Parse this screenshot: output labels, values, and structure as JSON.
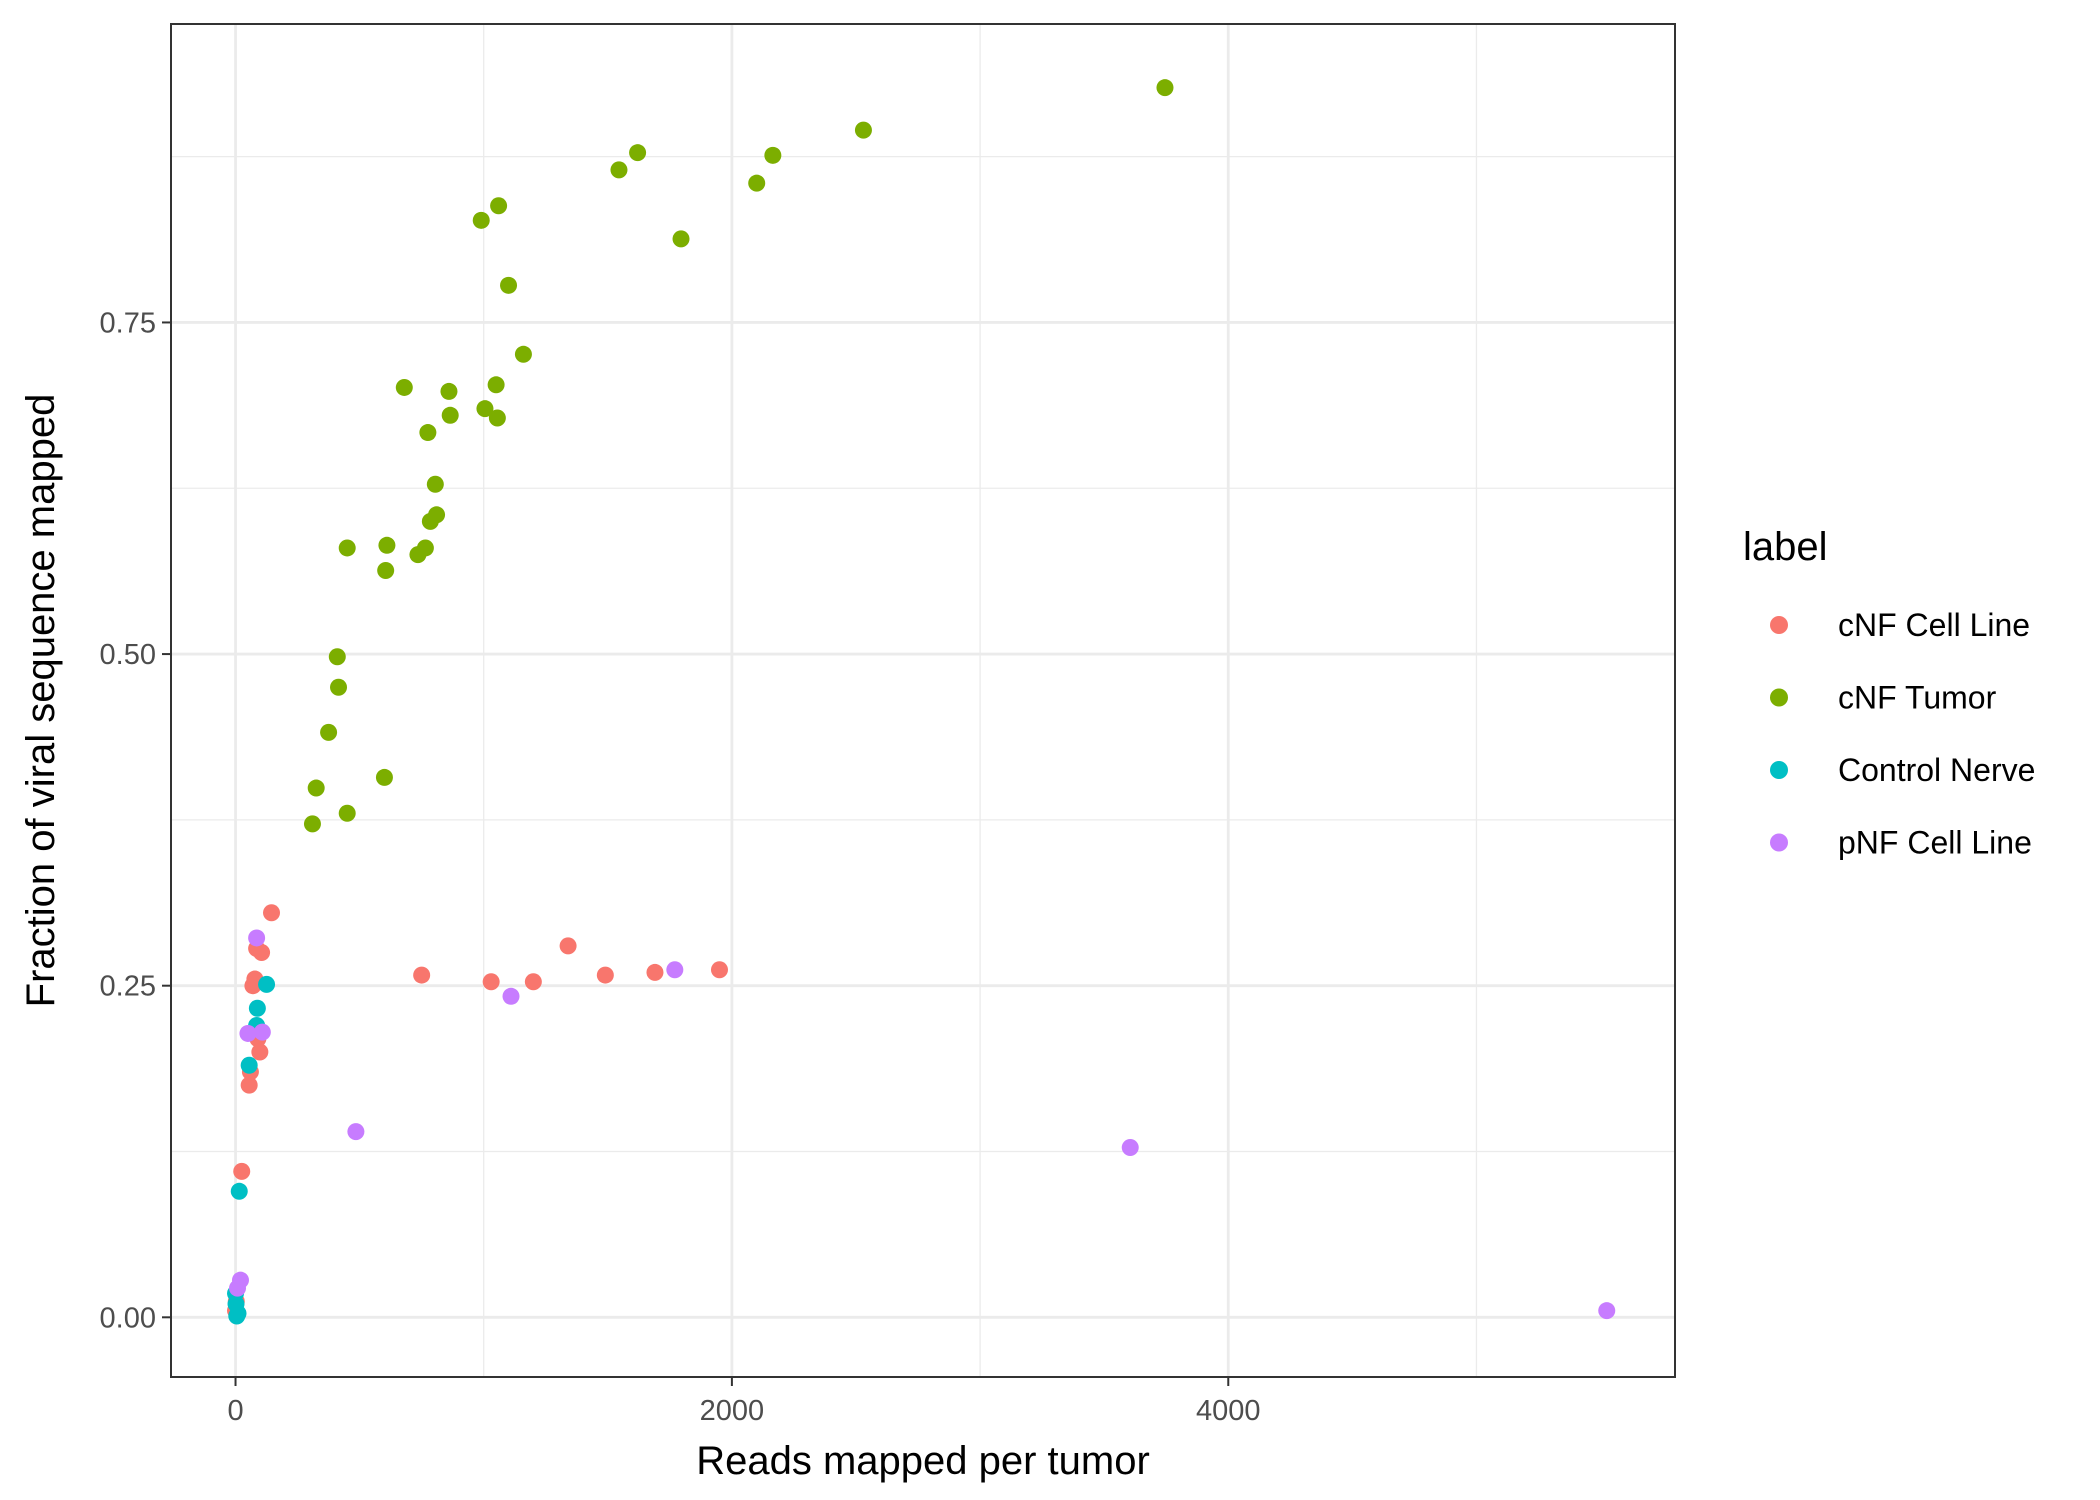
{
  "chart_data": {
    "type": "scatter",
    "xlabel": "Reads mapped per tumor",
    "ylabel": "Fraction of viral sequence mapped",
    "xlim": [
      -260,
      5800
    ],
    "ylim": [
      -0.045,
      0.975
    ],
    "x_ticks": [
      0,
      2000,
      4000
    ],
    "x_tick_labels": [
      "0",
      "2000",
      "4000"
    ],
    "x_minor_ticks": [
      1000,
      3000,
      5000
    ],
    "y_ticks": [
      0,
      0.25,
      0.5,
      0.75
    ],
    "y_tick_labels": [
      "0.00",
      "0.25",
      "0.50",
      "0.75"
    ],
    "y_minor_ticks": [
      0.125,
      0.375,
      0.625,
      0.875
    ],
    "grid": true,
    "theme": "bw",
    "legend": {
      "title": "label",
      "position": "right",
      "entries": [
        {
          "label": "cNF Cell Line",
          "color": "#F8766D"
        },
        {
          "label": "cNF Tumor",
          "color": "#7CAE00"
        },
        {
          "label": "Control Nerve",
          "color": "#00BFC4"
        },
        {
          "label": "pNF Cell Line",
          "color": "#C77CFF"
        }
      ]
    },
    "series": [
      {
        "name": "cNF Cell Line",
        "color": "#F8766D",
        "points": [
          [
            0,
            0.005
          ],
          [
            3,
            0.012
          ],
          [
            25,
            0.11
          ],
          [
            55,
            0.175
          ],
          [
            60,
            0.185
          ],
          [
            70,
            0.25
          ],
          [
            78,
            0.255
          ],
          [
            85,
            0.278
          ],
          [
            90,
            0.21
          ],
          [
            98,
            0.2
          ],
          [
            105,
            0.275
          ],
          [
            145,
            0.305
          ],
          [
            750,
            0.258
          ],
          [
            1030,
            0.253
          ],
          [
            1200,
            0.253
          ],
          [
            1340,
            0.28
          ],
          [
            1490,
            0.258
          ],
          [
            1690,
            0.26
          ],
          [
            1950,
            0.262
          ]
        ]
      },
      {
        "name": "cNF Tumor",
        "color": "#7CAE00",
        "points": [
          [
            310,
            0.372
          ],
          [
            325,
            0.399
          ],
          [
            375,
            0.441
          ],
          [
            410,
            0.498
          ],
          [
            415,
            0.475
          ],
          [
            450,
            0.38
          ],
          [
            450,
            0.58
          ],
          [
            600,
            0.407
          ],
          [
            605,
            0.563
          ],
          [
            610,
            0.582
          ],
          [
            680,
            0.701
          ],
          [
            735,
            0.575
          ],
          [
            765,
            0.58
          ],
          [
            775,
            0.667
          ],
          [
            785,
            0.6
          ],
          [
            805,
            0.628
          ],
          [
            810,
            0.605
          ],
          [
            860,
            0.698
          ],
          [
            865,
            0.68
          ],
          [
            990,
            0.827
          ],
          [
            1005,
            0.685
          ],
          [
            1050,
            0.703
          ],
          [
            1055,
            0.678
          ],
          [
            1060,
            0.838
          ],
          [
            1100,
            0.778
          ],
          [
            1160,
            0.726
          ],
          [
            1545,
            0.865
          ],
          [
            1620,
            0.878
          ],
          [
            1795,
            0.813
          ],
          [
            2100,
            0.855
          ],
          [
            2165,
            0.876
          ],
          [
            2530,
            0.895
          ],
          [
            3745,
            0.927
          ]
        ]
      },
      {
        "name": "Control Nerve",
        "color": "#00BFC4",
        "points": [
          [
            0,
            0.018
          ],
          [
            2,
            0.01
          ],
          [
            5,
            0.001
          ],
          [
            10,
            0.003
          ],
          [
            15,
            0.095
          ],
          [
            55,
            0.19
          ],
          [
            85,
            0.22
          ],
          [
            88,
            0.233
          ],
          [
            125,
            0.251
          ]
        ]
      },
      {
        "name": "pNF Cell Line",
        "color": "#C77CFF",
        "points": [
          [
            8,
            0.022
          ],
          [
            20,
            0.028
          ],
          [
            50,
            0.214
          ],
          [
            85,
            0.286
          ],
          [
            108,
            0.215
          ],
          [
            485,
            0.14
          ],
          [
            1110,
            0.242
          ],
          [
            1770,
            0.262
          ],
          [
            3605,
            0.128
          ],
          [
            5525,
            0.005
          ]
        ]
      }
    ]
  }
}
